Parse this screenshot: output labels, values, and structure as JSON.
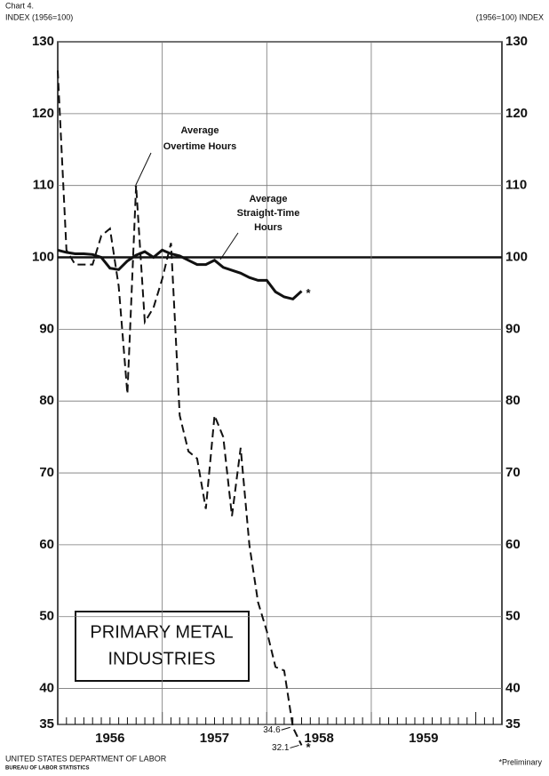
{
  "chart_data": {
    "type": "line",
    "chart_label": "Chart 4.",
    "left_axis_label": "INDEX (1956=100)",
    "right_axis_label": "(1956=100) INDEX",
    "title_lines": [
      "PRIMARY METAL",
      "INDUSTRIES"
    ],
    "x": [
      "1956-01",
      "1956-02",
      "1956-03",
      "1956-04",
      "1956-05",
      "1956-06",
      "1956-07",
      "1956-08",
      "1956-09",
      "1956-10",
      "1956-11",
      "1956-12",
      "1957-01",
      "1957-02",
      "1957-03",
      "1957-04",
      "1957-05",
      "1957-06",
      "1957-07",
      "1957-08",
      "1957-09",
      "1957-10",
      "1957-11",
      "1957-12",
      "1958-01",
      "1958-02",
      "1958-03",
      "1958-04",
      "1958-05"
    ],
    "xlim": [
      "1956-01",
      "1960-04"
    ],
    "year_labels": [
      "1956",
      "1957",
      "1958",
      "1959"
    ],
    "series": [
      {
        "name": "Average Overtime Hours",
        "name_lines": [
          "Average",
          "Overtime Hours"
        ],
        "color": "#111",
        "style": "dashed",
        "values": [
          126,
          101,
          99,
          99,
          99,
          103,
          104,
          96,
          81,
          110,
          91,
          93,
          97,
          102,
          78,
          73,
          72,
          65,
          78,
          75,
          64,
          73.5,
          60,
          52,
          48,
          43,
          42.5,
          34.6,
          32.1
        ],
        "value_labels": [
          null,
          null,
          null,
          null,
          null,
          null,
          null,
          null,
          null,
          null,
          null,
          null,
          null,
          null,
          null,
          null,
          null,
          null,
          null,
          null,
          null,
          null,
          null,
          null,
          null,
          null,
          null,
          "34.6",
          "32.1"
        ]
      },
      {
        "name": "Average Straight-Time Hours",
        "name_lines": [
          "Average",
          "Straight-Time",
          "Hours"
        ],
        "color": "#111",
        "style": "solid",
        "values": [
          101,
          100.7,
          100.5,
          100.5,
          100.4,
          100,
          98.5,
          98.3,
          99.5,
          100.3,
          100.8,
          100,
          101,
          100.5,
          100.2,
          99.6,
          99,
          99,
          99.6,
          98.6,
          98.2,
          97.8,
          97.2,
          96.8,
          96.8,
          95.2,
          94.5,
          94.2,
          95.3
        ]
      }
    ],
    "baseline": 100,
    "ylim": [
      35,
      130
    ],
    "yticks": [
      35,
      40,
      50,
      60,
      70,
      80,
      90,
      100,
      110,
      120,
      130
    ],
    "grid": true,
    "preliminary_mark": "*",
    "footnote": "*Preliminary",
    "source_lines": [
      "UNITED STATES DEPARTMENT OF LABOR",
      "BUREAU OF LABOR STATISTICS"
    ]
  }
}
